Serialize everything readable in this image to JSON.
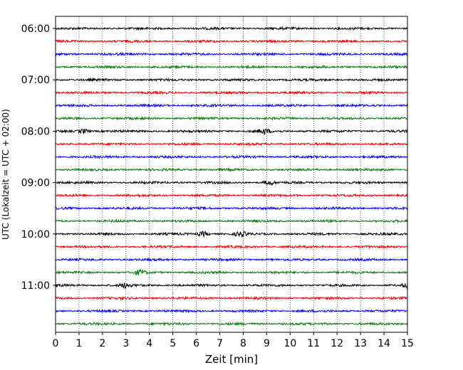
{
  "chart_data": {
    "type": "line",
    "title": "",
    "xlabel": "Zeit  [min]",
    "ylabel": "UTC (Lokalzeit = UTC + 02:00)",
    "xlim": [
      0,
      15
    ],
    "x_ticks": [
      "0",
      "1",
      "2",
      "3",
      "4",
      "5",
      "6",
      "7",
      "8",
      "9",
      "10",
      "11",
      "12",
      "13",
      "14",
      "15"
    ],
    "y_tick_labels": [
      "06:00",
      "07:00",
      "08:00",
      "09:00",
      "10:00",
      "11:00"
    ],
    "grid": "vertical dotted lines at each minute",
    "trace_start_times_utc": [
      "06:00",
      "06:15",
      "06:30",
      "06:45",
      "07:00",
      "07:15",
      "07:30",
      "07:45",
      "08:00",
      "08:15",
      "08:30",
      "08:45",
      "09:00",
      "09:15",
      "09:30",
      "09:45",
      "10:00",
      "10:15",
      "10:30",
      "10:45",
      "11:00",
      "11:15",
      "11:30",
      "11:45"
    ],
    "trace_color_cycle": [
      "#000000",
      "#ff0000",
      "#0000ff",
      "#008000"
    ],
    "trace_minutes": 15,
    "noteworthy_bursts": [
      {
        "start": "08:00",
        "minute": 1.2
      },
      {
        "start": "08:00",
        "minute": 8.9
      },
      {
        "start": "09:00",
        "minute": 9.1
      },
      {
        "start": "10:00",
        "minute": 6.3
      },
      {
        "start": "10:00",
        "minute": 7.9
      },
      {
        "start": "10:45",
        "minute": 3.6
      },
      {
        "start": "11:00",
        "minute": 3.0
      },
      {
        "start": "11:00",
        "minute": 15.0
      }
    ]
  }
}
